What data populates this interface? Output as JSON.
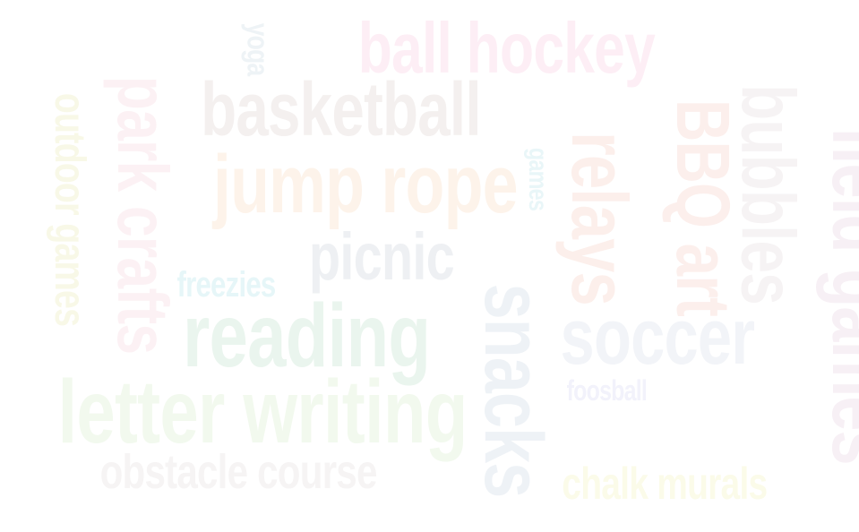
{
  "words": {
    "ball_hockey": {
      "text": "ball hockey",
      "color": "#fdeef5"
    },
    "basketball": {
      "text": "basketball",
      "color": "#f4f0ef"
    },
    "jump_rope": {
      "text": "jump rope",
      "color": "#fdf3ea"
    },
    "picnic": {
      "text": "picnic",
      "color": "#eef0f3"
    },
    "freezies": {
      "text": "freezies",
      "color": "#e6f6f8"
    },
    "reading": {
      "text": "reading",
      "color": "#eaf5ee"
    },
    "letter_writing": {
      "text": "letter writing",
      "color": "#f2f9ee"
    },
    "obstacle_course": {
      "text": "obstacle course",
      "color": "#f6f4f4"
    },
    "soccer": {
      "text": "soccer",
      "color": "#f2f4f8"
    },
    "foosball": {
      "text": "foosball",
      "color": "#f2f2fb"
    },
    "chalk_murals": {
      "text": "chalk murals",
      "color": "#fbfbe9"
    },
    "yoga": {
      "text": "yoga",
      "color": "#eef3f6"
    },
    "park_crafts": {
      "text": "park crafts",
      "color": "#fcf1f4"
    },
    "outdoor_games": {
      "text": "outdoor games",
      "color": "#f8f8e7"
    },
    "games_small": {
      "text": "games",
      "color": "#e9f6f8"
    },
    "relays": {
      "text": "relays",
      "color": "#fcefeb"
    },
    "bbq_art": {
      "text": "BBQ art",
      "color": "#fcefec"
    },
    "snacks": {
      "text": "snacks",
      "color": "#eef2f6"
    },
    "bubbles": {
      "text": "bubbles",
      "color": "#f6f3f4"
    },
    "field_games": {
      "text": "field games",
      "color": "#f7f0f5"
    }
  }
}
